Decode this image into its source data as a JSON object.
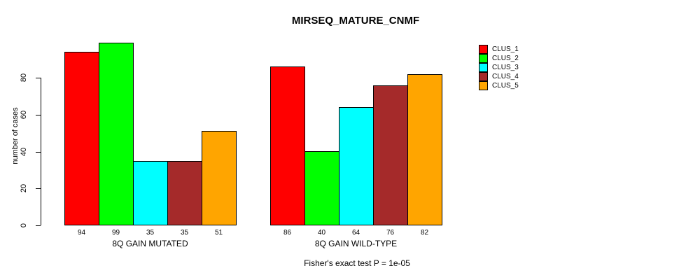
{
  "title": "MIRSEQ_MATURE_CNMF",
  "footer": "Fisher's exact test P = 1e-05",
  "chart_data": {
    "type": "bar",
    "title": "MIRSEQ_MATURE_CNMF",
    "ylabel": "number of cases",
    "xlabel": "",
    "yticks": [
      0,
      20,
      40,
      60,
      80
    ],
    "ylim": [
      0,
      105
    ],
    "grid": false,
    "legend_position": "right",
    "bar_border_color": "#000000",
    "series": [
      {
        "name": "CLUS_1",
        "color": "#FF0000"
      },
      {
        "name": "CLUS_2",
        "color": "#00FF00"
      },
      {
        "name": "CLUS_3",
        "color": "#00FFFF"
      },
      {
        "name": "CLUS_4",
        "color": "#A52A2A"
      },
      {
        "name": "CLUS_5",
        "color": "#FFA500"
      }
    ],
    "groups": [
      {
        "label": "8Q GAIN MUTATED",
        "values": [
          94,
          99,
          35,
          35,
          51
        ]
      },
      {
        "label": "8Q GAIN WILD-TYPE",
        "values": [
          86,
          40,
          64,
          76,
          82
        ]
      }
    ],
    "value_labels_shown": true,
    "caption": "Fisher's exact test P = 1e-05"
  }
}
